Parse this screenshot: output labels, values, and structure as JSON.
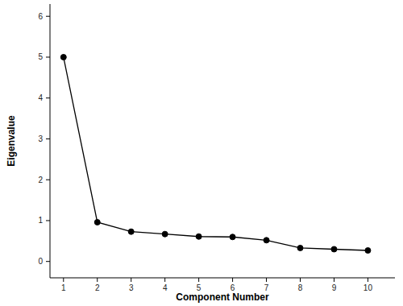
{
  "chart_data": {
    "type": "line",
    "x_label": "Component Number",
    "y_label": "Eigenvalue",
    "x": [
      1,
      2,
      3,
      4,
      5,
      6,
      7,
      8,
      9,
      10
    ],
    "values": [
      5.0,
      0.96,
      0.73,
      0.67,
      0.61,
      0.6,
      0.52,
      0.33,
      0.3,
      0.27
    ],
    "xlim": [
      0.6,
      10.8
    ],
    "xticks": [
      1,
      2,
      3,
      4,
      5,
      6,
      7,
      8,
      9,
      10
    ],
    "ylim": [
      -0.4,
      6.3
    ],
    "yticks": [
      0,
      1,
      2,
      3,
      4,
      5,
      6
    ],
    "color": "#000000",
    "marker": "circle",
    "grid": false
  }
}
